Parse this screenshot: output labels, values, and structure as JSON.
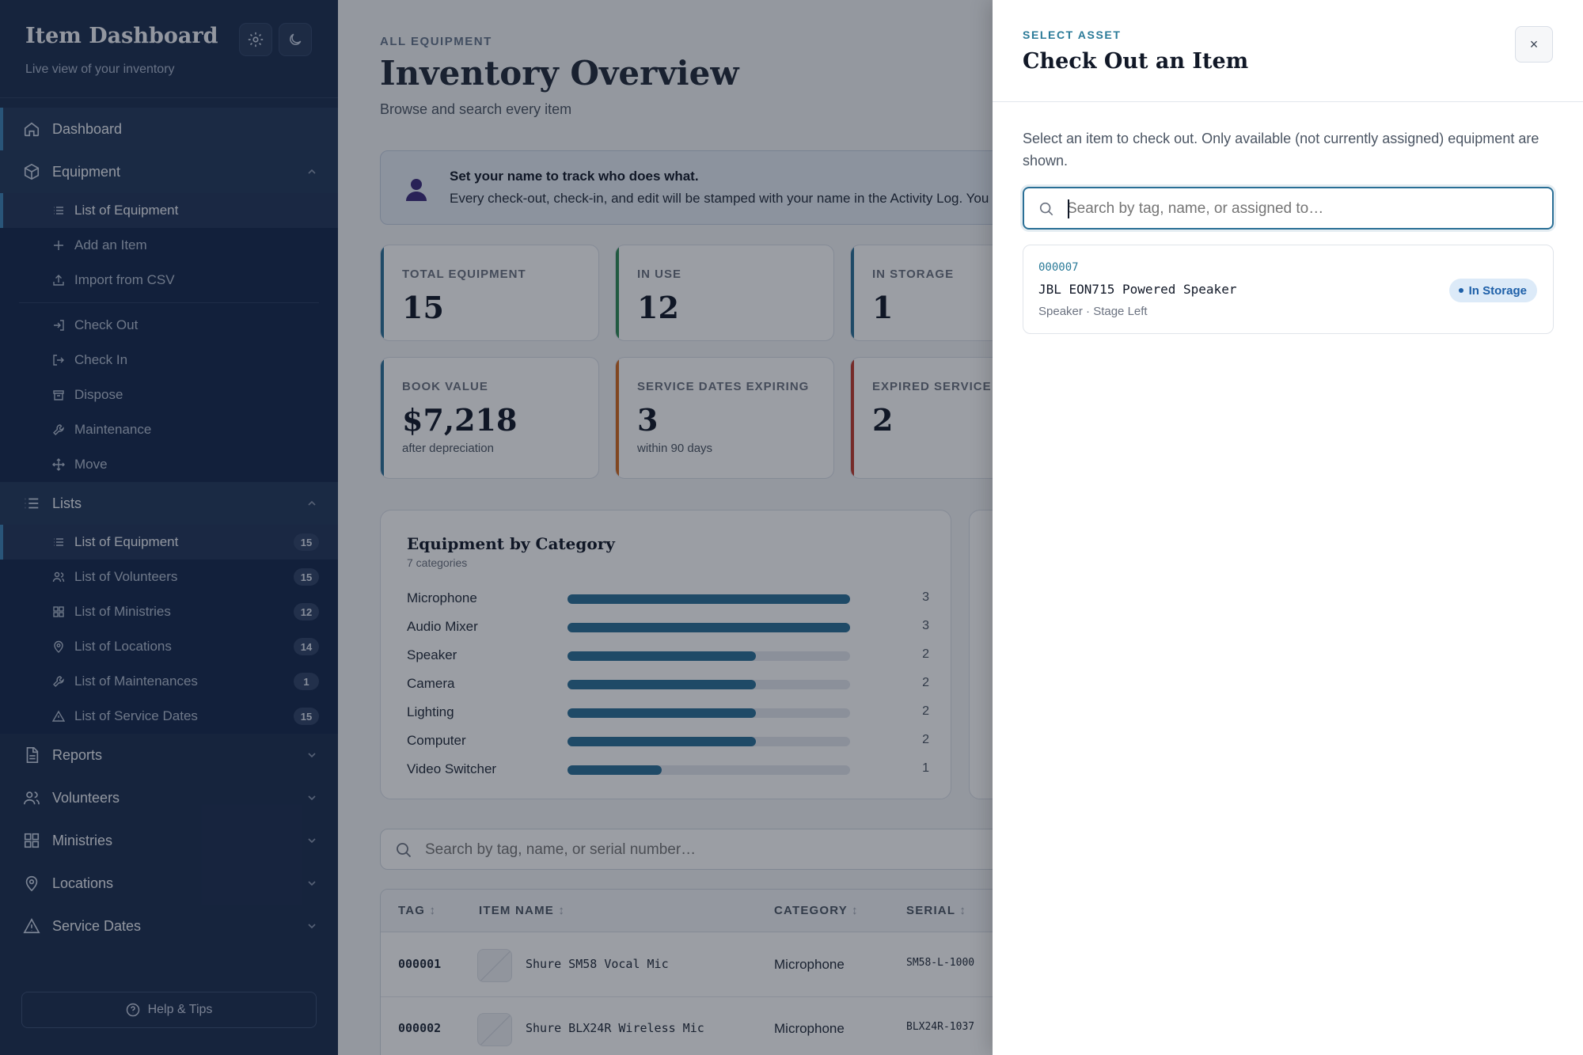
{
  "sidebar": {
    "title": "Item Dashboard",
    "subtitle": "Live view of your inventory",
    "nav": {
      "dashboard": "Dashboard",
      "equipment": "Equipment",
      "equipment_items": [
        "List of Equipment",
        "Add an Item",
        "Import from CSV",
        "Check Out",
        "Check In",
        "Dispose",
        "Maintenance",
        "Move"
      ],
      "lists": "Lists",
      "list_items": [
        {
          "label": "List of Equipment",
          "count": "15"
        },
        {
          "label": "List of Volunteers",
          "count": "15"
        },
        {
          "label": "List of Ministries",
          "count": "12"
        },
        {
          "label": "List of Locations",
          "count": "14"
        },
        {
          "label": "List of Maintenances",
          "count": "1"
        },
        {
          "label": "List of Service Dates",
          "count": "15"
        }
      ],
      "reports": "Reports",
      "volunteers": "Volunteers",
      "ministries": "Ministries",
      "locations": "Locations",
      "service_dates": "Service Dates"
    },
    "help": "Help & Tips"
  },
  "main": {
    "eyebrow": "ALL EQUIPMENT",
    "title": "Inventory Overview",
    "subtitle": "Browse and search every item",
    "notice": {
      "title": "Set your name to track who does what.",
      "body": "Every check-out, check-in, and edit will be stamped with your name in the Activity Log. You"
    },
    "stats": [
      {
        "label": "TOTAL EQUIPMENT",
        "value": "15",
        "note": "",
        "color": "#2a6f96"
      },
      {
        "label": "IN USE",
        "value": "12",
        "note": "",
        "color": "#2f8a55"
      },
      {
        "label": "IN STORAGE",
        "value": "1",
        "note": "",
        "color": "#2a6f96"
      },
      {
        "label": "BOOK VALUE",
        "value": "$7,218",
        "note": "after depreciation",
        "color": "#2a6f96"
      },
      {
        "label": "SERVICE DATES EXPIRING",
        "value": "3",
        "note": "within 90 days",
        "color": "#d2691e"
      },
      {
        "label": "EXPIRED SERVICE",
        "value": "2",
        "note": "",
        "color": "#c0392b"
      }
    ],
    "search_placeholder": "Search by tag, name, or serial number…",
    "search_kbd": "/",
    "table": {
      "columns": [
        "TAG",
        "ITEM NAME",
        "CATEGORY",
        "SERIAL"
      ],
      "rows": [
        {
          "tag": "000001",
          "name": "Shure SM58 Vocal Mic",
          "category": "Microphone",
          "serial": "SM58-L-1000"
        },
        {
          "tag": "000002",
          "name": "Shure BLX24R Wireless Mic",
          "category": "Microphone",
          "serial": "BLX24R-1037"
        }
      ]
    }
  },
  "chart_data": {
    "type": "bar",
    "title": "Equipment by Category",
    "subtitle": "7 categories",
    "categories": [
      "Microphone",
      "Audio Mixer",
      "Speaker",
      "Camera",
      "Lighting",
      "Computer",
      "Video Switcher"
    ],
    "values": [
      3,
      3,
      2,
      2,
      2,
      2,
      1
    ],
    "xlim": [
      0,
      3
    ],
    "orientation": "horizontal",
    "bar_color": "#2a6f96"
  },
  "drawer": {
    "eyebrow": "SELECT ASSET",
    "title": "Check Out an Item",
    "close": "×",
    "description": "Select an item to check out. Only available (not currently assigned) equipment are shown.",
    "search_placeholder": "Search by tag, name, or assigned to…",
    "results": [
      {
        "tag": "000007",
        "name": "JBL EON715 Powered Speaker",
        "meta": "Speaker · Stage Left",
        "status": "In Storage"
      }
    ]
  }
}
